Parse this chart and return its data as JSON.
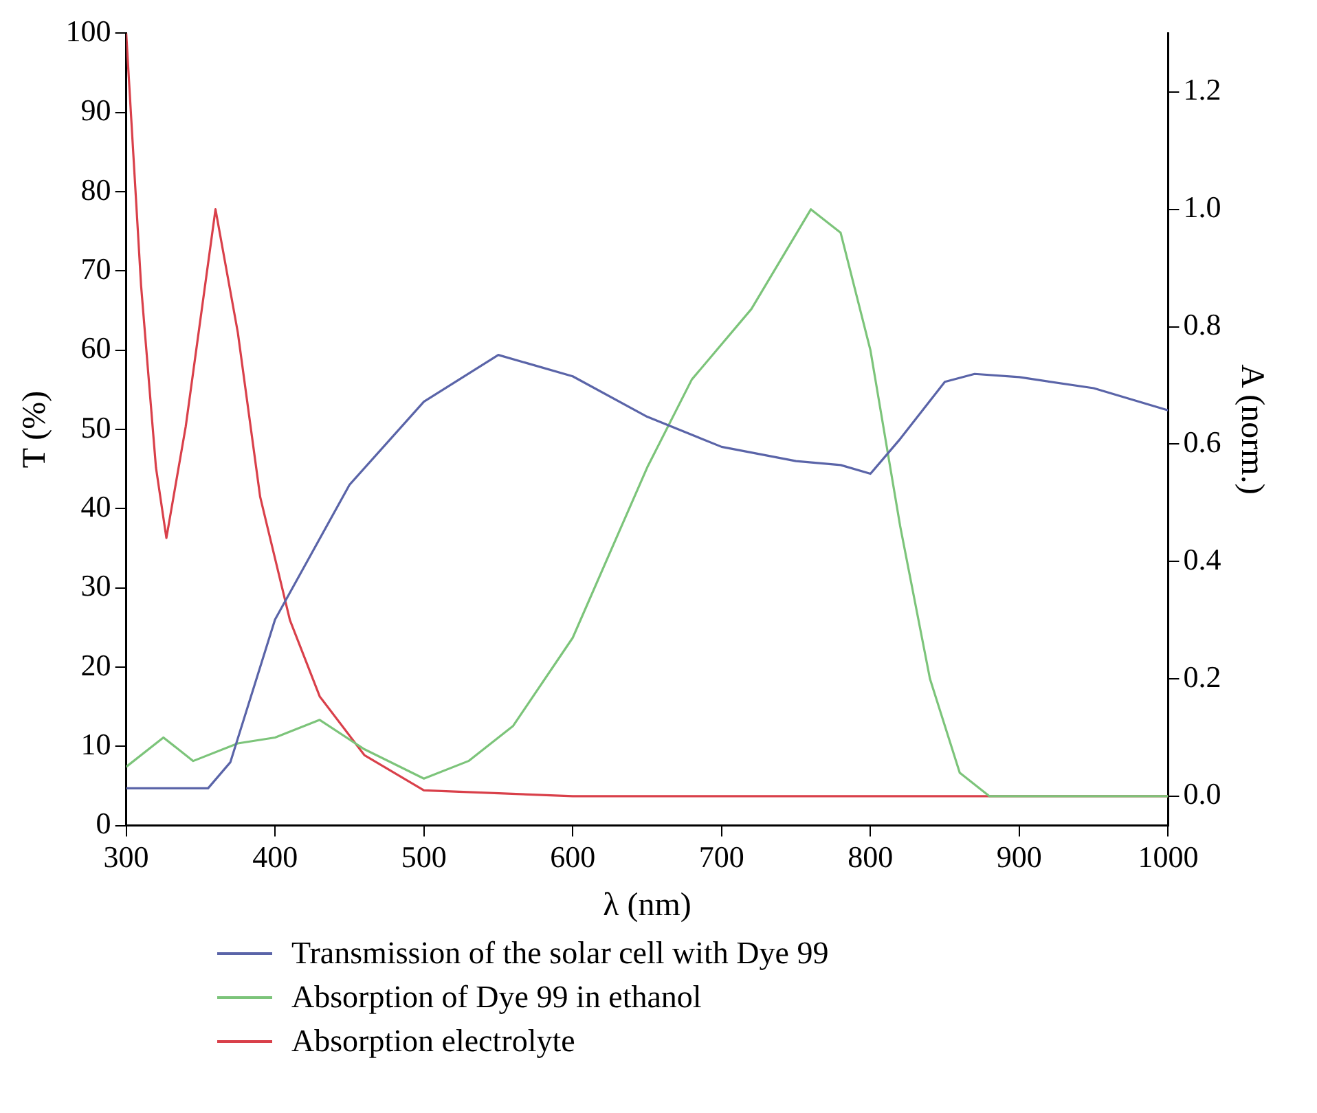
{
  "chart_data": {
    "type": "line",
    "xlabel": "λ (nm)",
    "ylabel": "T (%)",
    "y2label": "A (norm.)",
    "xlim": [
      300,
      1000
    ],
    "xticks": [
      300,
      400,
      500,
      600,
      700,
      800,
      900,
      1000
    ],
    "ylim": [
      0,
      100
    ],
    "yticks": [
      0,
      10,
      20,
      30,
      40,
      50,
      60,
      70,
      80,
      90,
      100
    ],
    "y2lim": [
      -0.05,
      1.3
    ],
    "y2ticks": [
      {
        "value": 0,
        "label": "0.0"
      },
      0.2,
      0.4,
      0.6,
      0.8,
      {
        "value": 1,
        "label": "1.0"
      },
      1.2
    ],
    "grid": false,
    "legend": "bottom",
    "marker": "none",
    "line_style": "solid",
    "series": [
      {
        "name": "Transmission of the solar cell with Dye 99",
        "color": "#5a64a8",
        "x": [
          300,
          355,
          370,
          400,
          450,
          500,
          550,
          600,
          650,
          700,
          750,
          780,
          800,
          820,
          850,
          870,
          900,
          950,
          1000
        ],
        "values": [
          4.7,
          4.7,
          8,
          26,
          43,
          53.5,
          59.4,
          56.7,
          51.6,
          47.8,
          46,
          45.5,
          44.4,
          48.8,
          56,
          57,
          56.6,
          55.2,
          52.4
        ]
      },
      {
        "name": "Absorption of Dye 99 in ethanol",
        "color": "#7cc47a",
        "axis": "y2",
        "x": [
          300,
          325,
          345,
          375,
          400,
          430,
          460,
          500,
          530,
          560,
          600,
          650,
          680,
          720,
          760,
          780,
          800,
          820,
          840,
          860,
          880,
          1000
        ],
        "values": [
          0.05,
          0.1,
          0.06,
          0.09,
          0.1,
          0.13,
          0.08,
          0.03,
          0.06,
          0.12,
          0.27,
          0.56,
          0.71,
          0.83,
          1.0,
          0.96,
          0.76,
          0.46,
          0.2,
          0.04,
          0.0,
          0.0
        ]
      },
      {
        "name": "Absorption electrolyte",
        "color": "#d9404a",
        "axis": "y2",
        "x": [
          300,
          310,
          320,
          327,
          340,
          360,
          375,
          390,
          410,
          430,
          460,
          500,
          600,
          1000
        ],
        "values": [
          1.3,
          0.87,
          0.56,
          0.44,
          0.63,
          1.0,
          0.79,
          0.51,
          0.3,
          0.17,
          0.07,
          0.01,
          0.0,
          0.0
        ]
      }
    ]
  }
}
